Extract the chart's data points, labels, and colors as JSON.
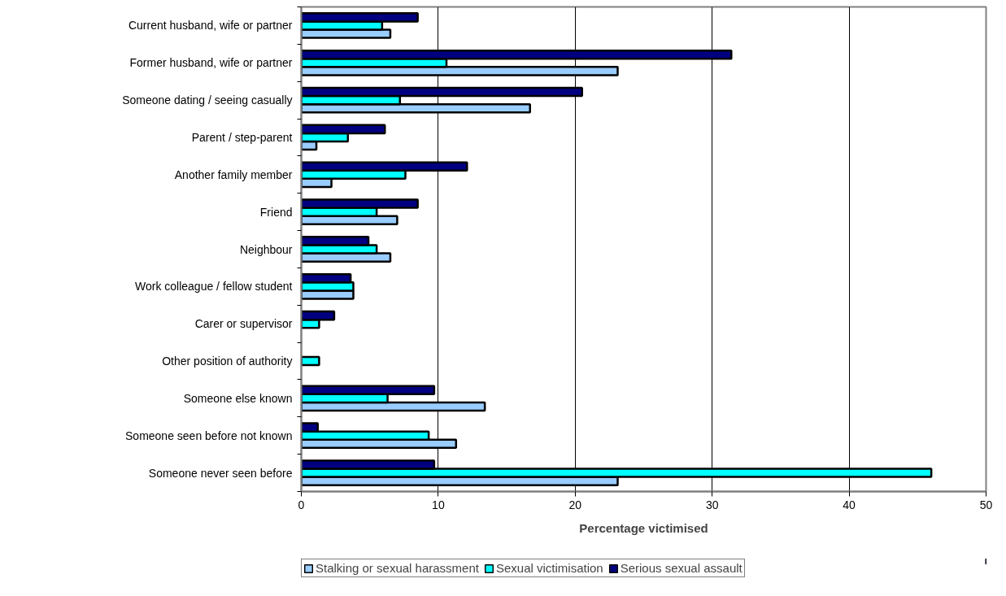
{
  "chart_data": {
    "type": "bar",
    "orientation": "horizontal",
    "xlabel": "Percentage victimised",
    "categories": [
      "Current husband, wife or partner",
      "Former husband, wife or partner",
      "Someone dating / seeing casually",
      "Parent / step-parent",
      "Another family member",
      "Friend",
      "Neighbour",
      "Work colleague / fellow student",
      "Carer or supervisor",
      "Other position of authority",
      "Someone else known",
      "Someone seen before not known",
      "Someone never seen before"
    ],
    "series": [
      {
        "name": "Stalking or sexual harassment",
        "color": "#99ccff",
        "values": [
          6.5,
          23.1,
          16.7,
          1.1,
          2.2,
          7.0,
          6.5,
          3.8,
          null,
          null,
          13.4,
          11.3,
          23.1
        ]
      },
      {
        "name": "Sexual victimisation",
        "color": "#00ffff",
        "values": [
          5.9,
          10.6,
          7.2,
          3.4,
          7.6,
          5.5,
          5.5,
          3.8,
          1.3,
          1.3,
          6.3,
          9.3,
          46.0
        ]
      },
      {
        "name": "Serious sexual assault",
        "color": "#000080",
        "values": [
          8.5,
          31.4,
          20.5,
          6.1,
          12.1,
          8.5,
          4.9,
          3.6,
          2.4,
          null,
          9.7,
          1.2,
          9.7
        ]
      }
    ],
    "xlim": [
      0,
      50
    ],
    "xticks": [
      0,
      10,
      20,
      30,
      40,
      50
    ],
    "grid": "x",
    "legend": "bottom"
  }
}
